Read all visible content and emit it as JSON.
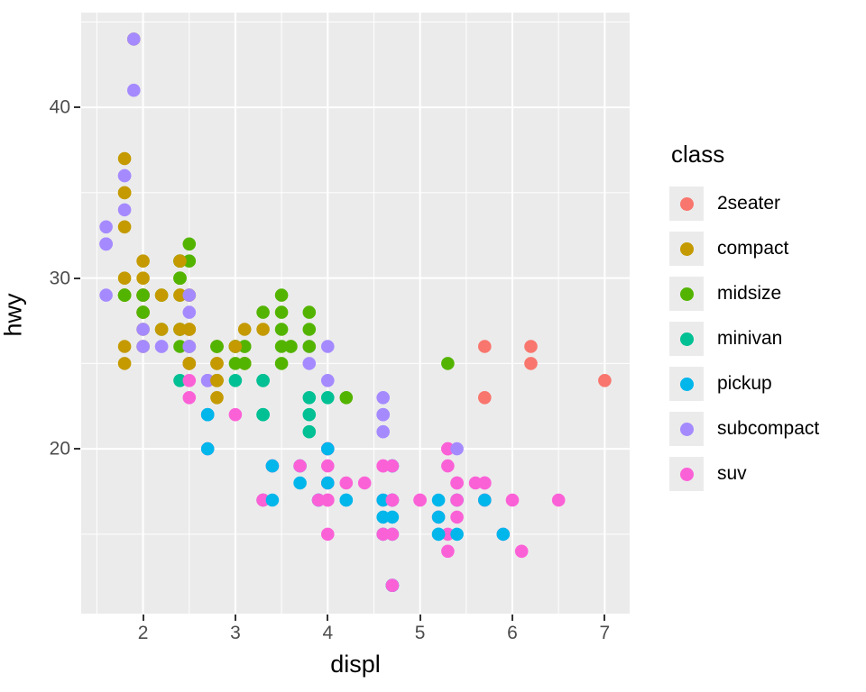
{
  "chart_data": {
    "type": "scatter",
    "title": "",
    "xlabel": "displ",
    "ylabel": "hwy",
    "legend_title": "class",
    "legend_position": "right",
    "grid": true,
    "panel_background": "#EBEBEB",
    "gridline_color": "#FFFFFF",
    "tick_label_color": "#4D4D4D",
    "xlim": [
      1.33,
      7.27
    ],
    "ylim": [
      10.35,
      45.55
    ],
    "x_major": [
      2,
      3,
      4,
      5,
      6,
      7
    ],
    "x_minor": [
      1.5,
      2.5,
      3.5,
      4.5,
      5.5,
      6.5
    ],
    "y_major": [
      20,
      30,
      40
    ],
    "y_minor": [
      15,
      25,
      35,
      45
    ],
    "point_radius": 7.3,
    "classes": [
      {
        "name": "2seater",
        "color": "#F8766D"
      },
      {
        "name": "compact",
        "color": "#C49A00"
      },
      {
        "name": "midsize",
        "color": "#53B400"
      },
      {
        "name": "minivan",
        "color": "#00C094"
      },
      {
        "name": "pickup",
        "color": "#00B6EB"
      },
      {
        "name": "subcompact",
        "color": "#A58AFF"
      },
      {
        "name": "suv",
        "color": "#FB61D7"
      }
    ],
    "points": [
      [
        1.8,
        29,
        1
      ],
      [
        1.8,
        29,
        1
      ],
      [
        2.0,
        31,
        1
      ],
      [
        2.0,
        30,
        1
      ],
      [
        2.8,
        26,
        1
      ],
      [
        2.8,
        26,
        1
      ],
      [
        3.1,
        27,
        1
      ],
      [
        1.8,
        26,
        1
      ],
      [
        1.8,
        25,
        1
      ],
      [
        2.0,
        28,
        1
      ],
      [
        2.0,
        27,
        1
      ],
      [
        2.8,
        25,
        1
      ],
      [
        2.8,
        25,
        1
      ],
      [
        3.1,
        25,
        1
      ],
      [
        3.1,
        25,
        1
      ],
      [
        2.8,
        24,
        2
      ],
      [
        3.1,
        25,
        2
      ],
      [
        4.2,
        23,
        2
      ],
      [
        5.3,
        20,
        6
      ],
      [
        5.3,
        19,
        6
      ],
      [
        5.3,
        15,
        6
      ],
      [
        5.7,
        17,
        6
      ],
      [
        6.0,
        17,
        6
      ],
      [
        5.7,
        26,
        0
      ],
      [
        5.7,
        23,
        0
      ],
      [
        6.2,
        26,
        0
      ],
      [
        6.2,
        25,
        0
      ],
      [
        7.0,
        24,
        0
      ],
      [
        5.3,
        20,
        6
      ],
      [
        5.3,
        14,
        6
      ],
      [
        5.7,
        17,
        6
      ],
      [
        6.5,
        17,
        6
      ],
      [
        2.4,
        27,
        2
      ],
      [
        2.4,
        30,
        2
      ],
      [
        3.1,
        26,
        2
      ],
      [
        3.5,
        29,
        2
      ],
      [
        3.6,
        26,
        2
      ],
      [
        2.4,
        24,
        3
      ],
      [
        3.0,
        24,
        3
      ],
      [
        3.3,
        22,
        3
      ],
      [
        3.3,
        22,
        3
      ],
      [
        3.3,
        24,
        3
      ],
      [
        3.3,
        24,
        3
      ],
      [
        3.3,
        17,
        3
      ],
      [
        3.8,
        22,
        3
      ],
      [
        3.8,
        21,
        3
      ],
      [
        3.8,
        23,
        3
      ],
      [
        4.0,
        23,
        3
      ],
      [
        3.7,
        19,
        4
      ],
      [
        3.7,
        18,
        4
      ],
      [
        3.9,
        17,
        4
      ],
      [
        3.9,
        17,
        4
      ],
      [
        4.7,
        19,
        4
      ],
      [
        4.7,
        19,
        4
      ],
      [
        4.7,
        12,
        4
      ],
      [
        5.2,
        17,
        4
      ],
      [
        5.2,
        15,
        4
      ],
      [
        3.9,
        17,
        6
      ],
      [
        4.7,
        17,
        6
      ],
      [
        4.7,
        12,
        6
      ],
      [
        4.7,
        17,
        6
      ],
      [
        5.2,
        16,
        6
      ],
      [
        5.7,
        18,
        6
      ],
      [
        5.9,
        15,
        6
      ],
      [
        4.7,
        16,
        4
      ],
      [
        4.7,
        12,
        4
      ],
      [
        4.7,
        17,
        4
      ],
      [
        4.7,
        15,
        4
      ],
      [
        4.7,
        17,
        4
      ],
      [
        4.7,
        12,
        4
      ],
      [
        5.2,
        15,
        4
      ],
      [
        5.2,
        16,
        4
      ],
      [
        5.7,
        17,
        4
      ],
      [
        5.9,
        15,
        4
      ],
      [
        4.6,
        17,
        6
      ],
      [
        5.4,
        17,
        6
      ],
      [
        5.4,
        18,
        6
      ],
      [
        4.0,
        17,
        6
      ],
      [
        4.0,
        17,
        6
      ],
      [
        4.0,
        19,
        6
      ],
      [
        4.0,
        18,
        6
      ],
      [
        4.6,
        19,
        6
      ],
      [
        5.0,
        17,
        6
      ],
      [
        4.2,
        17,
        4
      ],
      [
        4.2,
        17,
        4
      ],
      [
        4.6,
        16,
        4
      ],
      [
        4.6,
        15,
        4
      ],
      [
        4.6,
        17,
        4
      ],
      [
        5.4,
        15,
        4
      ],
      [
        5.4,
        17,
        4
      ],
      [
        3.8,
        26,
        5
      ],
      [
        3.8,
        25,
        5
      ],
      [
        4.0,
        26,
        5
      ],
      [
        4.0,
        24,
        5
      ],
      [
        4.6,
        21,
        5
      ],
      [
        4.6,
        22,
        5
      ],
      [
        4.6,
        23,
        5
      ],
      [
        4.6,
        22,
        5
      ],
      [
        5.4,
        20,
        5
      ],
      [
        1.6,
        33,
        5
      ],
      [
        1.6,
        32,
        5
      ],
      [
        1.6,
        32,
        5
      ],
      [
        1.6,
        29,
        5
      ],
      [
        1.6,
        32,
        5
      ],
      [
        1.8,
        34,
        5
      ],
      [
        1.8,
        36,
        5
      ],
      [
        1.8,
        36,
        5
      ],
      [
        2.0,
        29,
        5
      ],
      [
        2.4,
        26,
        2
      ],
      [
        2.4,
        27,
        2
      ],
      [
        2.4,
        30,
        2
      ],
      [
        2.4,
        31,
        2
      ],
      [
        2.5,
        26,
        2
      ],
      [
        2.5,
        26,
        2
      ],
      [
        3.3,
        28,
        2
      ],
      [
        2.0,
        26,
        5
      ],
      [
        2.0,
        29,
        5
      ],
      [
        2.0,
        28,
        5
      ],
      [
        2.0,
        27,
        5
      ],
      [
        2.7,
        24,
        5
      ],
      [
        2.7,
        24,
        5
      ],
      [
        2.7,
        24,
        5
      ],
      [
        3.0,
        22,
        6
      ],
      [
        3.7,
        19,
        6
      ],
      [
        4.0,
        20,
        6
      ],
      [
        4.7,
        17,
        6
      ],
      [
        4.7,
        19,
        6
      ],
      [
        4.7,
        12,
        6
      ],
      [
        5.7,
        18,
        6
      ],
      [
        6.1,
        14,
        6
      ],
      [
        4.0,
        15,
        6
      ],
      [
        4.2,
        18,
        6
      ],
      [
        4.4,
        18,
        6
      ],
      [
        4.6,
        15,
        6
      ],
      [
        5.4,
        17,
        6
      ],
      [
        5.4,
        16,
        6
      ],
      [
        5.4,
        18,
        6
      ],
      [
        4.0,
        17,
        6
      ],
      [
        4.0,
        18,
        6
      ],
      [
        4.6,
        19,
        6
      ],
      [
        5.0,
        17,
        6
      ],
      [
        2.4,
        29,
        2
      ],
      [
        2.4,
        31,
        2
      ],
      [
        2.5,
        31,
        2
      ],
      [
        2.5,
        32,
        2
      ],
      [
        3.5,
        27,
        2
      ],
      [
        3.5,
        26,
        2
      ],
      [
        3.0,
        26,
        2
      ],
      [
        3.0,
        25,
        2
      ],
      [
        3.5,
        25,
        2
      ],
      [
        3.3,
        17,
        6
      ],
      [
        3.3,
        17,
        6
      ],
      [
        4.0,
        20,
        6
      ],
      [
        5.6,
        18,
        6
      ],
      [
        3.1,
        26,
        2
      ],
      [
        3.8,
        26,
        2
      ],
      [
        3.8,
        27,
        2
      ],
      [
        3.8,
        28,
        2
      ],
      [
        5.3,
        25,
        2
      ],
      [
        2.5,
        25,
        6
      ],
      [
        2.5,
        24,
        6
      ],
      [
        2.5,
        27,
        6
      ],
      [
        2.5,
        25,
        6
      ],
      [
        2.5,
        23,
        6
      ],
      [
        2.5,
        26,
        6
      ],
      [
        2.2,
        26,
        5
      ],
      [
        2.2,
        26,
        5
      ],
      [
        2.5,
        26,
        5
      ],
      [
        2.5,
        26,
        5
      ],
      [
        2.5,
        25,
        1
      ],
      [
        2.5,
        27,
        1
      ],
      [
        2.5,
        25,
        1
      ],
      [
        2.5,
        27,
        1
      ],
      [
        2.7,
        20,
        6
      ],
      [
        2.7,
        22,
        6
      ],
      [
        3.4,
        19,
        6
      ],
      [
        3.4,
        19,
        6
      ],
      [
        4.0,
        20,
        6
      ],
      [
        4.7,
        17,
        6
      ],
      [
        2.2,
        27,
        2
      ],
      [
        2.2,
        29,
        2
      ],
      [
        2.4,
        30,
        2
      ],
      [
        2.4,
        31,
        2
      ],
      [
        3.0,
        26,
        2
      ],
      [
        3.0,
        26,
        2
      ],
      [
        3.5,
        28,
        2
      ],
      [
        2.2,
        27,
        1
      ],
      [
        2.2,
        29,
        1
      ],
      [
        2.4,
        27,
        1
      ],
      [
        2.4,
        29,
        1
      ],
      [
        2.4,
        31,
        1
      ],
      [
        3.0,
        26,
        1
      ],
      [
        3.3,
        27,
        1
      ],
      [
        1.8,
        30,
        1
      ],
      [
        1.8,
        33,
        1
      ],
      [
        1.8,
        35,
        1
      ],
      [
        1.8,
        37,
        1
      ],
      [
        1.8,
        35,
        1
      ],
      [
        4.7,
        15,
        6
      ],
      [
        5.7,
        18,
        6
      ],
      [
        2.7,
        20,
        4
      ],
      [
        2.7,
        22,
        4
      ],
      [
        2.7,
        22,
        4
      ],
      [
        3.4,
        19,
        4
      ],
      [
        3.4,
        17,
        4
      ],
      [
        4.0,
        20,
        4
      ],
      [
        4.0,
        18,
        4
      ],
      [
        2.0,
        29,
        1
      ],
      [
        2.0,
        29,
        1
      ],
      [
        2.0,
        28,
        1
      ],
      [
        2.0,
        29,
        1
      ],
      [
        2.8,
        24,
        1
      ],
      [
        1.9,
        44,
        1
      ],
      [
        2.0,
        29,
        1
      ],
      [
        2.0,
        26,
        1
      ],
      [
        2.0,
        29,
        1
      ],
      [
        2.0,
        29,
        1
      ],
      [
        2.5,
        29,
        1
      ],
      [
        2.5,
        29,
        1
      ],
      [
        2.8,
        23,
        1
      ],
      [
        2.8,
        24,
        1
      ],
      [
        1.9,
        44,
        5
      ],
      [
        1.9,
        41,
        5
      ],
      [
        2.0,
        29,
        5
      ],
      [
        2.0,
        26,
        5
      ],
      [
        2.5,
        28,
        5
      ],
      [
        2.5,
        29,
        5
      ],
      [
        1.8,
        29,
        2
      ],
      [
        1.8,
        29,
        2
      ],
      [
        2.0,
        28,
        2
      ],
      [
        2.0,
        29,
        2
      ],
      [
        2.8,
        26,
        2
      ],
      [
        2.8,
        26,
        2
      ],
      [
        3.6,
        26,
        2
      ]
    ]
  }
}
